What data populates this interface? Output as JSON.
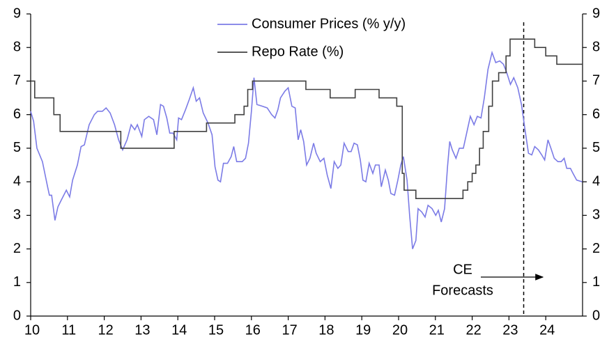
{
  "chart_data": {
    "type": "line",
    "xlim": [
      2010,
      2025
    ],
    "xticks": [
      {
        "value": 2010,
        "label": "10"
      },
      {
        "value": 2011,
        "label": "11"
      },
      {
        "value": 2012,
        "label": "12"
      },
      {
        "value": 2013,
        "label": "13"
      },
      {
        "value": 2014,
        "label": "14"
      },
      {
        "value": 2015,
        "label": "15"
      },
      {
        "value": 2016,
        "label": "16"
      },
      {
        "value": 2017,
        "label": "17"
      },
      {
        "value": 2018,
        "label": "18"
      },
      {
        "value": 2019,
        "label": "19"
      },
      {
        "value": 2020,
        "label": "20"
      },
      {
        "value": 2021,
        "label": "21"
      },
      {
        "value": 2022,
        "label": "22"
      },
      {
        "value": 2023,
        "label": "23"
      },
      {
        "value": 2024,
        "label": "24"
      }
    ],
    "ylim": [
      0,
      9
    ],
    "yticks": [
      0,
      1,
      2,
      3,
      4,
      5,
      6,
      7,
      8,
      9
    ],
    "y2lim": [
      0,
      9
    ],
    "y2ticks": [
      0,
      1,
      2,
      3,
      4,
      5,
      6,
      7,
      8,
      9
    ],
    "forecast_start": 2023.4,
    "annotation": [
      "CE",
      "Forecasts"
    ],
    "series": [
      {
        "name": "Consumer Prices (% y/y)",
        "color": "#7b7be6",
        "x": [
          2010,
          2010.08,
          2010.17,
          2010.32,
          2010.46,
          2010.51,
          2010.57,
          2010.66,
          2010.74,
          2010.83,
          2010.97,
          2011.06,
          2011.14,
          2011.27,
          2011.37,
          2011.46,
          2011.59,
          2011.73,
          2011.82,
          2011.95,
          2012.05,
          2012.16,
          2012.28,
          2012.39,
          2012.5,
          2012.62,
          2012.73,
          2012.83,
          2012.9,
          2013.02,
          2013.09,
          2013.21,
          2013.34,
          2013.43,
          2013.53,
          2013.61,
          2013.7,
          2013.78,
          2013.87,
          2013.97,
          2014.02,
          2014.1,
          2014.21,
          2014.31,
          2014.42,
          2014.5,
          2014.59,
          2014.69,
          2014.82,
          2014.93,
          2015.01,
          2015.09,
          2015.16,
          2015.24,
          2015.35,
          2015.45,
          2015.52,
          2015.6,
          2015.75,
          2015.84,
          2015.92,
          2016.0,
          2016.07,
          2016.15,
          2016.3,
          2016.43,
          2016.55,
          2016.64,
          2016.72,
          2016.79,
          2016.91,
          2017.0,
          2017.1,
          2017.19,
          2017.27,
          2017.34,
          2017.42,
          2017.5,
          2017.59,
          2017.69,
          2017.76,
          2017.87,
          2017.97,
          2018.06,
          2018.16,
          2018.25,
          2018.35,
          2018.43,
          2018.52,
          2018.63,
          2018.71,
          2018.79,
          2018.88,
          2018.96,
          2019.03,
          2019.11,
          2019.2,
          2019.3,
          2019.37,
          2019.47,
          2019.53,
          2019.64,
          2019.72,
          2019.79,
          2019.89,
          2019.98,
          2020.06,
          2020.13,
          2020.23,
          2020.3,
          2020.38,
          2020.47,
          2020.53,
          2020.63,
          2020.72,
          2020.8,
          2020.91,
          2021.01,
          2021.08,
          2021.16,
          2021.25,
          2021.33,
          2021.39,
          2021.46,
          2021.56,
          2021.65,
          2021.76,
          2021.86,
          2021.95,
          2022.05,
          2022.14,
          2022.24,
          2022.33,
          2022.43,
          2022.54,
          2022.64,
          2022.75,
          2022.85,
          2022.94,
          2023.04,
          2023.13,
          2023.24,
          2023.34,
          2023.43,
          2023.53,
          2023.62,
          2023.7,
          2023.8,
          2023.89,
          2023.97,
          2024.06,
          2024.14,
          2024.23,
          2024.33,
          2024.42,
          2024.5,
          2024.57,
          2024.67,
          2024.74,
          2024.84,
          2024.99
        ],
        "values": [
          6.1,
          5.8,
          5.0,
          4.6,
          3.85,
          3.6,
          3.6,
          2.85,
          3.25,
          3.45,
          3.75,
          3.55,
          4.05,
          4.5,
          5.05,
          5.1,
          5.7,
          6.0,
          6.1,
          6.1,
          6.2,
          6.05,
          5.7,
          5.25,
          4.95,
          5.25,
          5.7,
          5.55,
          5.7,
          5.35,
          5.85,
          5.95,
          5.85,
          5.4,
          6.3,
          6.25,
          5.9,
          5.45,
          5.45,
          5.25,
          5.9,
          5.85,
          6.15,
          6.45,
          6.8,
          6.4,
          6.5,
          6.05,
          5.75,
          5.4,
          4.45,
          4.05,
          4.0,
          4.55,
          4.55,
          4.75,
          5.05,
          4.6,
          4.6,
          4.7,
          5.15,
          6.1,
          7.1,
          6.3,
          6.25,
          6.2,
          6.0,
          5.9,
          6.15,
          6.5,
          6.7,
          6.8,
          6.25,
          6.2,
          5.25,
          5.55,
          5.2,
          4.5,
          4.7,
          5.15,
          4.85,
          4.6,
          4.7,
          4.2,
          3.8,
          4.6,
          4.4,
          4.5,
          5.15,
          4.9,
          4.9,
          5.15,
          5.1,
          4.65,
          4.05,
          4.0,
          4.55,
          4.25,
          4.5,
          4.5,
          3.85,
          4.35,
          4.05,
          3.65,
          3.6,
          4.05,
          4.5,
          4.75,
          4.05,
          3.0,
          2.0,
          2.25,
          3.2,
          3.1,
          2.95,
          3.3,
          3.2,
          3.0,
          3.15,
          2.8,
          3.2,
          4.45,
          5.2,
          4.95,
          4.7,
          5.0,
          5.0,
          5.5,
          5.95,
          5.7,
          5.95,
          5.9,
          6.5,
          7.35,
          7.85,
          7.55,
          7.6,
          7.5,
          7.25,
          6.9,
          7.1,
          6.8,
          6.3,
          5.6,
          4.85,
          4.8,
          5.05,
          4.95,
          4.8,
          4.65,
          5.25,
          5.0,
          4.7,
          4.6,
          4.6,
          4.7,
          4.4,
          4.4,
          4.25,
          4.05,
          4.0
        ]
      },
      {
        "name": "Repo Rate (%)",
        "color": "#404040",
        "axis": "y2",
        "drawstyle": "steps-post",
        "x": [
          2010,
          2010.11,
          2010.63,
          2010.8,
          2012.45,
          2013.9,
          2014.78,
          2015.55,
          2015.8,
          2015.9,
          2016.03,
          2017.48,
          2018.14,
          2018.82,
          2019.47,
          2019.95,
          2020.1,
          2020.15,
          2020.47,
          2021.75,
          2021.88,
          2022.0,
          2022.1,
          2022.2,
          2022.3,
          2022.45,
          2022.55,
          2022.72,
          2022.92,
          2023.03,
          2023.7,
          2024.0,
          2024.3,
          2025.0
        ],
        "values": [
          7.0,
          6.5,
          6.0,
          5.5,
          5.0,
          5.5,
          5.75,
          6.0,
          6.25,
          6.75,
          7.0,
          6.75,
          6.5,
          6.75,
          6.5,
          6.25,
          4.25,
          3.75,
          3.5,
          3.75,
          4.0,
          4.25,
          4.5,
          5.0,
          5.5,
          6.25,
          7.0,
          7.25,
          7.75,
          8.25,
          8.0,
          7.75,
          7.5,
          7.5
        ]
      }
    ]
  }
}
